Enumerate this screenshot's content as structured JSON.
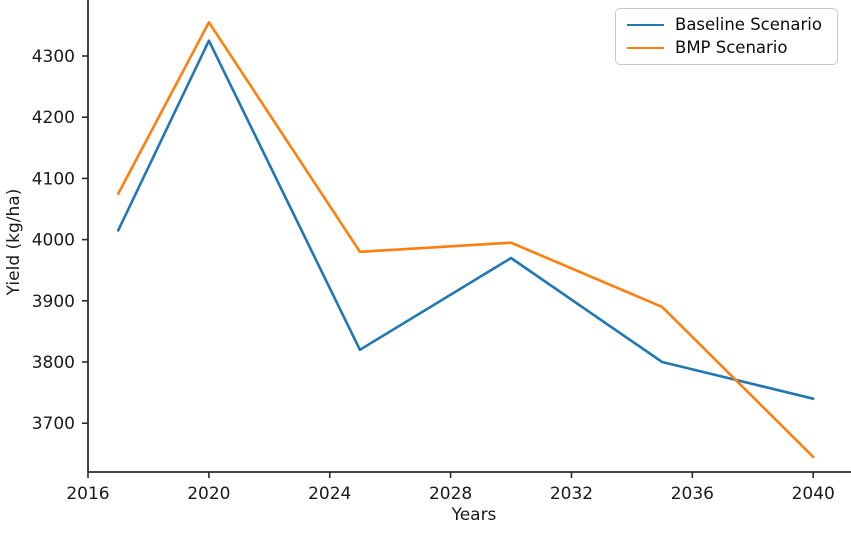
{
  "figure": {
    "background": "#ffffff",
    "axis_color": "#2b2b2b",
    "text_color": "#1a1a1a",
    "legend": {
      "border_color": "#c9c9c9",
      "background": "#ffffff"
    }
  },
  "chart_data": {
    "type": "line",
    "title": "",
    "xlabel": "Years",
    "ylabel": "Yield (kg/ha)",
    "x": [
      2017,
      2020,
      2025,
      2030,
      2035,
      2040
    ],
    "series": [
      {
        "name": "Baseline Scenario",
        "color": "#1f77b4",
        "values": [
          4015,
          4325,
          3820,
          3970,
          3800,
          3740
        ]
      },
      {
        "name": "BMP Scenario",
        "color": "#ff7f0e",
        "values": [
          4075,
          4355,
          3980,
          3995,
          3890,
          3645
        ]
      }
    ],
    "x_ticks": [
      2016,
      2020,
      2024,
      2028,
      2032,
      2036,
      2040
    ],
    "y_ticks": [
      3700,
      3800,
      3900,
      4000,
      4100,
      4200,
      4300
    ],
    "xlim": [
      2016,
      2041.3
    ],
    "ylim_visible": [
      3636,
      4392
    ],
    "legend_position": "upper-right",
    "grid": false
  }
}
